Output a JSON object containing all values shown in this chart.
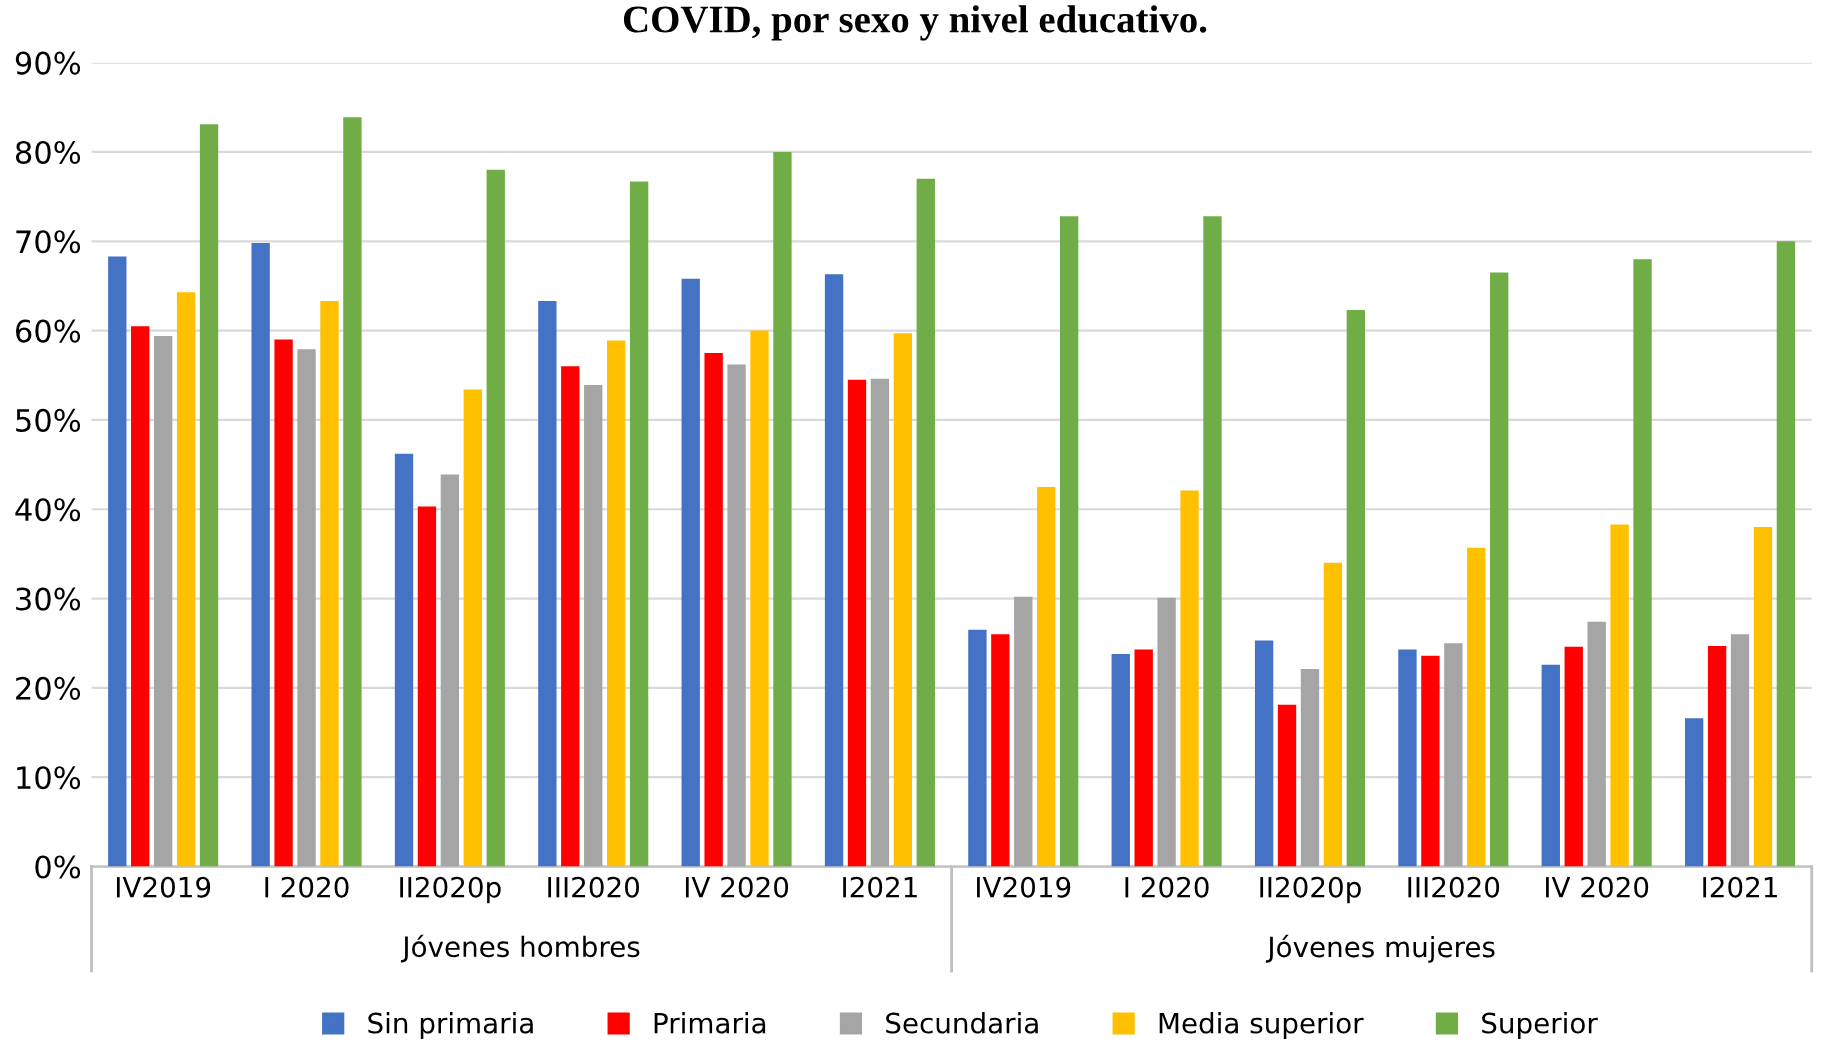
{
  "chart_data": {
    "type": "bar",
    "title": "COVID, por sexo y nivel educativo.",
    "categories": [
      "IV2019",
      "I 2020",
      "II2020p",
      "III2020",
      "IV 2020",
      "I2021",
      "IV2019",
      "I 2020",
      "II2020p",
      "III2020",
      "IV 2020",
      "I2021"
    ],
    "series": [
      {
        "name": "Sin primaria",
        "color": "#4472c4",
        "values": [
          68.3,
          69.8,
          46.2,
          63.3,
          65.8,
          66.3,
          26.5,
          23.8,
          25.3,
          24.3,
          22.6,
          16.6
        ]
      },
      {
        "name": "Primaria",
        "color": "#ff0000",
        "values": [
          60.5,
          59.0,
          40.3,
          56.0,
          57.5,
          54.5,
          26.0,
          24.3,
          18.1,
          23.6,
          24.6,
          24.7
        ]
      },
      {
        "name": "Secundaria",
        "color": "#a5a5a5",
        "values": [
          59.4,
          57.9,
          43.9,
          53.9,
          56.2,
          54.6,
          30.2,
          30.1,
          22.1,
          25.0,
          27.4,
          26.0
        ]
      },
      {
        "name": "Media superior",
        "color": "#ffc000",
        "values": [
          64.3,
          63.3,
          53.4,
          58.9,
          60.0,
          59.7,
          42.5,
          42.1,
          34.0,
          35.7,
          38.3,
          38.0
        ]
      },
      {
        "name": "Superior",
        "color": "#70ad47",
        "values": [
          83.1,
          83.9,
          78.0,
          76.7,
          80.0,
          77.0,
          72.8,
          72.8,
          62.3,
          66.5,
          68.0,
          70.0
        ]
      }
    ],
    "annotations": [
      "Jóvenes hombres",
      "Jóvenes mujeres"
    ],
    "ylim": [
      0,
      90
    ],
    "yticks": [
      {
        "value": 0,
        "label": "0%"
      },
      {
        "value": 10,
        "label": "10%"
      },
      {
        "value": 20,
        "label": "20%"
      },
      {
        "value": 30,
        "label": "30%"
      },
      {
        "value": 40,
        "label": "40%"
      },
      {
        "value": 50,
        "label": "50%"
      },
      {
        "value": 60,
        "label": "60%"
      },
      {
        "value": 70,
        "label": "70%"
      },
      {
        "value": 80,
        "label": "80%"
      },
      {
        "value": 90,
        "label": "90%"
      }
    ],
    "grid": "y",
    "legend": "bottom"
  }
}
